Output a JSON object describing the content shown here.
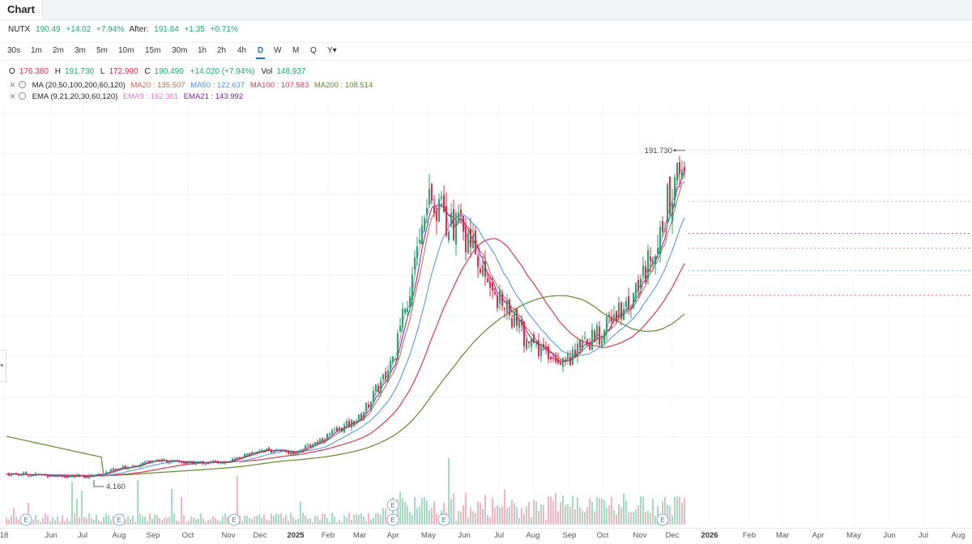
{
  "tab": {
    "label": "Chart"
  },
  "quote": {
    "symbol": "NUTX",
    "price": "190.49",
    "change": "+14.02",
    "change_pct": "+7.94%",
    "after_label": "After:",
    "after_price": "191.84",
    "after_change": "+1.35",
    "after_change_pct": "+0.71%"
  },
  "timeframes": [
    "30s",
    "1m",
    "2m",
    "3m",
    "5m",
    "10m",
    "15m",
    "30m",
    "1h",
    "2h",
    "4h",
    "D",
    "W",
    "M",
    "Q",
    "Y▾"
  ],
  "active_timeframe": "D",
  "ohlc": {
    "o_label": "O",
    "o": "176.380",
    "h_label": "H",
    "h": "191.730",
    "l_label": "L",
    "l": "172.990",
    "c_label": "C",
    "c": "190.490",
    "c_chg": "+14.020 (+7.94%)",
    "vol_label": "Vol",
    "vol": "148,937"
  },
  "ma_legend": {
    "name": "MA (20,50,100,200,60,120)",
    "ma20": "MA20 : 135.507",
    "ma50": "MA50 : 122.637",
    "ma100": "MA100 : 107.583",
    "ma200": "MA200 : 108.514"
  },
  "ema_legend": {
    "name": "EMA (9,21,20,30,60,120)",
    "ema9": "EMA9 : 162.361",
    "ema21": "EMA21 : 143.992"
  },
  "colors": {
    "up": "#21a86b",
    "down": "#e0284a",
    "ma20": "#c0624a",
    "ma50": "#4a8fe0",
    "ma100": "#d63a50",
    "ma200": "#5e8a2e",
    "ema9": "#d977c9",
    "ema21": "#7a1f8c"
  },
  "annotations": {
    "high_label": "191.730",
    "low_label": "4.160"
  },
  "earnings_marker": "E",
  "x_axis_labels": [
    "18",
    "Jun",
    "Jul",
    "Aug",
    "Sep",
    "Oct",
    "Nov",
    "Dec",
    "2025",
    "Feb",
    "Mar",
    "Apr",
    "May",
    "Jun",
    "Jul",
    "Aug",
    "Sep",
    "Oct",
    "Nov",
    "Dec",
    "2026",
    "Feb",
    "Mar",
    "Apr",
    "May",
    "Jun",
    "Jul",
    "Aug"
  ],
  "x_axis_bold": [
    "2025",
    "2026"
  ],
  "chart_data": {
    "type": "line",
    "title": "",
    "series": [
      {
        "name": "NUTX",
        "x": [
          "Jun",
          "Jul",
          "Aug",
          "Sep",
          "Oct",
          "Nov",
          "Dec",
          "2025",
          "Feb",
          "Mar",
          "Apr",
          "May",
          "Jun",
          "Jul",
          "Aug",
          "Sep",
          "Oct",
          "Nov",
          "Dec"
        ],
        "values": [
          6,
          5,
          4.16,
          14,
          12,
          13,
          20,
          18,
          28,
          38,
          70,
          160,
          145,
          105,
          78,
          72,
          88,
          115,
          191.73
        ]
      }
    ],
    "annotations": [
      "191.730",
      "4.160"
    ]
  }
}
